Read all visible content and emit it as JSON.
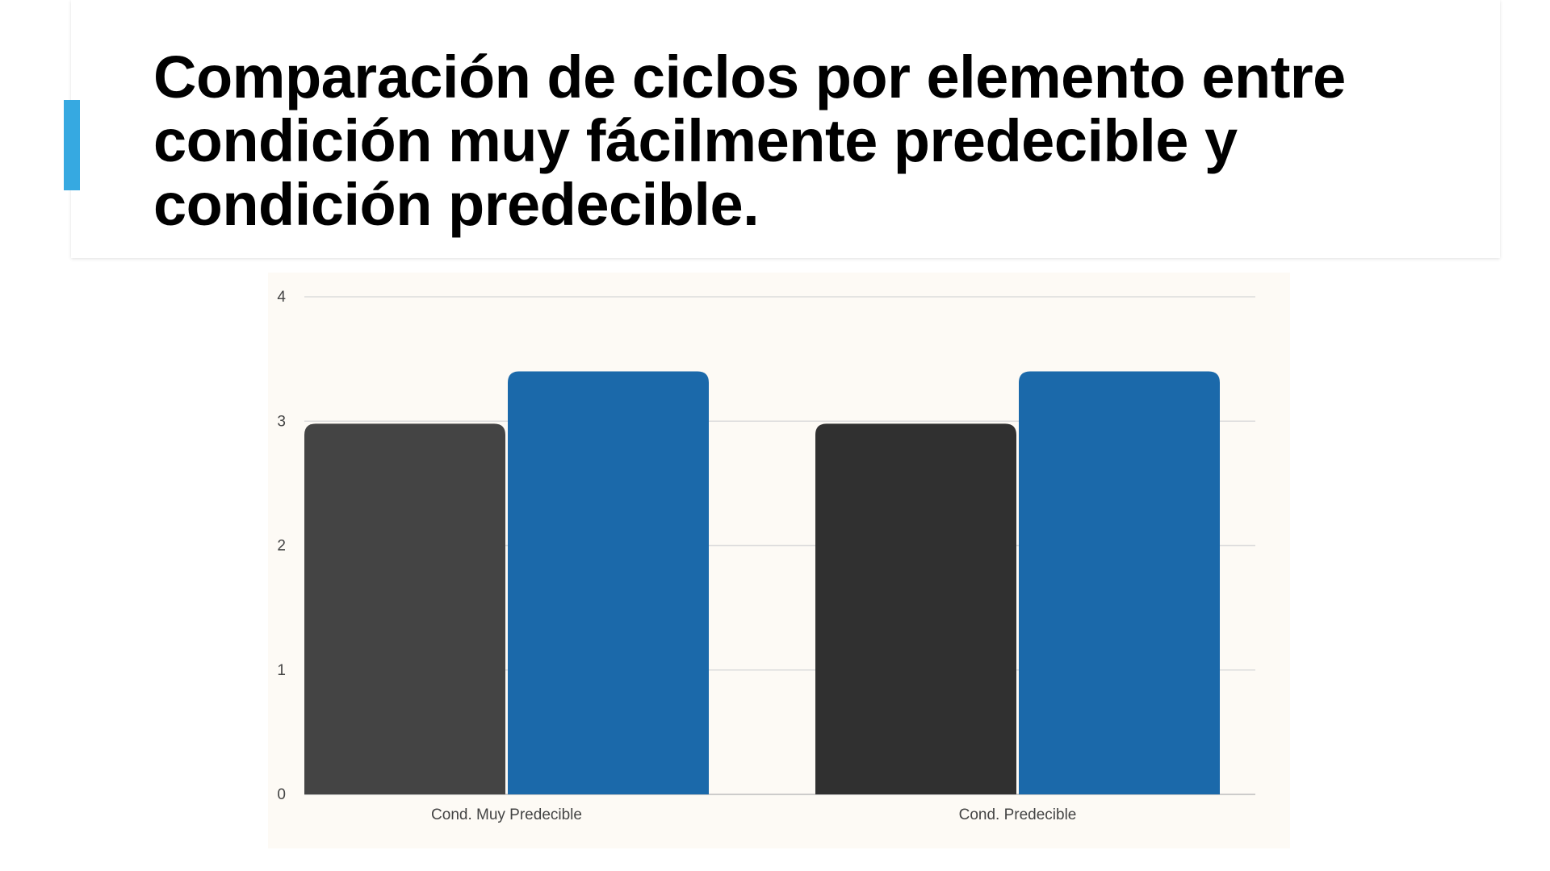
{
  "slide": {
    "title": "Comparación de ciclos por elemento entre condición muy fácilmente predecible y condición predecible.",
    "accent_color": "#36A9E1"
  },
  "chart_data": {
    "type": "bar",
    "title": "",
    "xlabel": "",
    "ylabel": "",
    "categories": [
      "Cond. Muy Predecible",
      "Cond. Predecible"
    ],
    "series": [
      {
        "values": [
          2.98,
          2.98
        ],
        "colors": [
          "#444444",
          "#303030"
        ]
      },
      {
        "values": [
          3.4,
          3.4
        ],
        "colors": [
          "#1B69AA",
          "#1B69AA"
        ]
      }
    ],
    "ylim": [
      0,
      4
    ],
    "yticks": [
      "0",
      "1",
      "2",
      "3",
      "4"
    ],
    "grid": true,
    "legend": "none",
    "background": "#FDFAF5"
  }
}
